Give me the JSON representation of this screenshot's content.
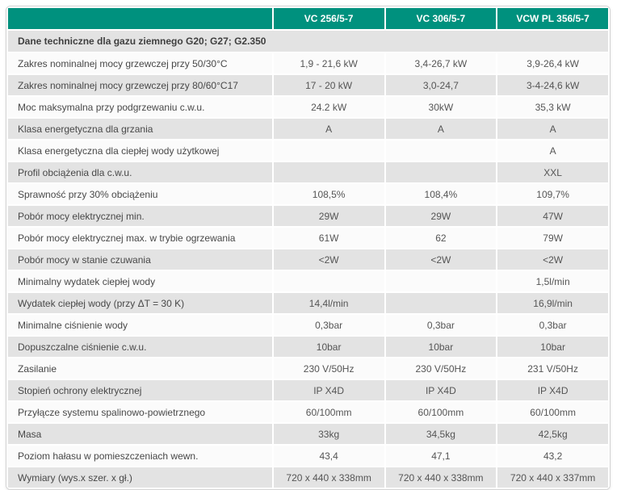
{
  "table": {
    "corner_label": "",
    "column_headers": [
      "VC 256/5-7",
      "VC 306/5-7",
      "VCW PL 356/5-7"
    ],
    "section_title": "Dane techniczne dla gazu ziemnego G20; G27; G2.350",
    "rows": [
      {
        "label": "Zakres nominalnej mocy grzewczej przy 50/30°C",
        "values": [
          "1,9 - 21,6 kW",
          "3,4-26,7 kW",
          "3,9-26,4 kW"
        ]
      },
      {
        "label": "Zakres nominalnej mocy grzewczej przy 80/60°C17",
        "values": [
          "17 - 20 kW",
          "3,0-24,7",
          "3-4-24,6 kW"
        ]
      },
      {
        "label": "Moc maksymalna przy podgrzewaniu c.w.u.",
        "values": [
          "24.2 kW",
          "30kW",
          "35,3 kW"
        ]
      },
      {
        "label": "Klasa energetyczna dla grzania",
        "values": [
          "A",
          "A",
          "A"
        ]
      },
      {
        "label": "Klasa energetyczna dla ciepłej wody użytkowej",
        "values": [
          "",
          "",
          "A"
        ]
      },
      {
        "label": "Profil obciążenia dla c.w.u.",
        "values": [
          "",
          "",
          "XXL"
        ]
      },
      {
        "label": "Sprawność przy 30% obciążeniu",
        "values": [
          "108,5%",
          "108,4%",
          "109,7%"
        ]
      },
      {
        "label": "Pobór mocy elektrycznej min.",
        "values": [
          "29W",
          "29W",
          "47W"
        ]
      },
      {
        "label": "Pobór mocy elektrycznej max. w trybie ogrzewania",
        "values": [
          "61W",
          "62",
          "79W"
        ]
      },
      {
        "label": "Pobór mocy w stanie czuwania",
        "values": [
          "<2W",
          "<2W",
          "<2W"
        ]
      },
      {
        "label": "Minimalny wydatek ciepłej wody",
        "values": [
          "",
          "",
          "1,5l/min"
        ]
      },
      {
        "label": "Wydatek ciepłej wody (przy ΔT = 30 K)",
        "values": [
          "14,4l/min",
          "",
          "16,9l/min"
        ]
      },
      {
        "label": "Minimalne ciśnienie wody",
        "values": [
          "0,3bar",
          "0,3bar",
          "0,3bar"
        ]
      },
      {
        "label": "Dopuszczalne ciśnienie c.w.u.",
        "values": [
          "10bar",
          "10bar",
          "10bar"
        ]
      },
      {
        "label": "Zasilanie",
        "values": [
          "230 V/50Hz",
          "230 V/50Hz",
          "231 V/50Hz"
        ]
      },
      {
        "label": "Stopień ochrony elektrycznej",
        "values": [
          "IP X4D",
          "IP X4D",
          "IP X4D"
        ]
      },
      {
        "label": "Przyłącze systemu spalinowo-powietrznego",
        "values": [
          "60/100mm",
          "60/100mm",
          "60/100mm"
        ]
      },
      {
        "label": "Masa",
        "values": [
          "33kg",
          "34,5kg",
          "42,5kg"
        ]
      },
      {
        "label": "Poziom hałasu w pomieszczeniach wewn.",
        "values": [
          "43,4",
          "47,1",
          "43,2"
        ]
      },
      {
        "label": "Wymiary (wys.x szer. x gł.)",
        "values": [
          "720 x 440 x 338mm",
          "720 x 440 x 338mm",
          "720 x 440 x 337mm"
        ]
      }
    ]
  },
  "colors": {
    "header_bg": "#00917e",
    "header_text": "#ffffff",
    "row_gray_bg": "#e3e3e3",
    "row_light_bg": "#fbfbfb",
    "label_text": "#484848",
    "value_text": "#555555",
    "border": "#d4d4d4"
  }
}
